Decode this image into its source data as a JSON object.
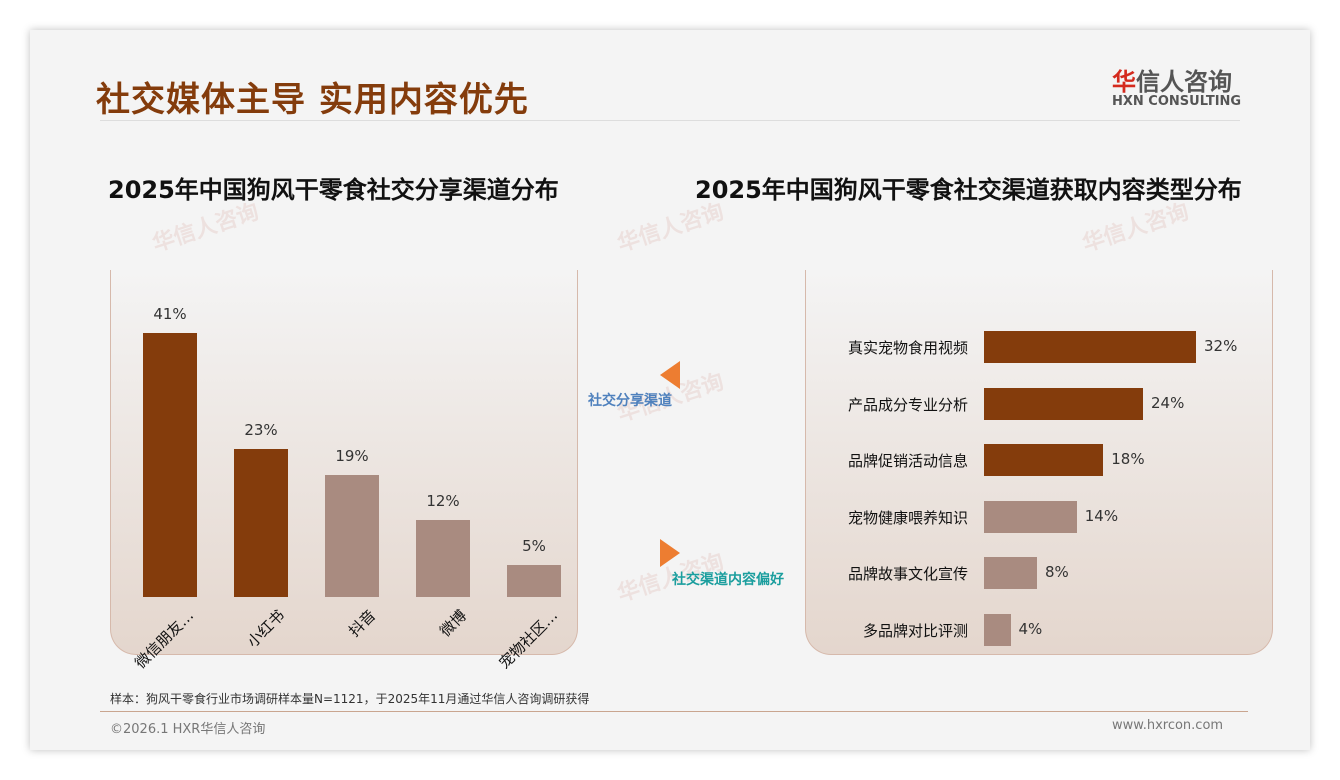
{
  "header": {
    "title": "社交媒体主导 实用内容优先",
    "logo_cn_red": "华",
    "logo_cn": "信人咨询",
    "logo_en": "HXN CONSULTING"
  },
  "watermark": {
    "cn": "华信人咨询",
    "en": "HXN CONSULTING"
  },
  "middle": {
    "left_label": "社交分享渠道",
    "right_label": "社交渠道内容偏好",
    "colors": {
      "arrow": "#ed7d31",
      "left_label": "#4f81bd",
      "right_label": "#1b9e9e"
    }
  },
  "footer": {
    "note": "样本：狗风干零食行业市场调研样本量N=1121，于2025年11月通过华信人咨询调研获得",
    "copyright": "©2026.1 HXR华信人咨询",
    "url": "www.hxrcon.com"
  },
  "chart_data": [
    {
      "type": "bar",
      "title": "2025年中国狗风干零食社交分享渠道分布",
      "categories": [
        "微信朋友…",
        "小红书",
        "抖音",
        "微博",
        "宠物社区…"
      ],
      "values": [
        41,
        23,
        19,
        12,
        5
      ],
      "labels": [
        "41%",
        "23%",
        "19%",
        "12%",
        "5%"
      ],
      "colors": [
        "#843c0c",
        "#843c0c",
        "#a98b80",
        "#a98b80",
        "#a98b80"
      ],
      "ylim": [
        0,
        41
      ]
    },
    {
      "type": "bar",
      "orientation": "horizontal",
      "title": "2025年中国狗风干零食社交渠道获取内容类型分布",
      "categories": [
        "真实宠物食用视频",
        "产品成分专业分析",
        "品牌促销活动信息",
        "宠物健康喂养知识",
        "品牌故事文化宣传",
        "多品牌对比评测"
      ],
      "values": [
        32,
        24,
        18,
        14,
        8,
        4
      ],
      "labels": [
        "32%",
        "24%",
        "18%",
        "14%",
        "8%",
        "4%"
      ],
      "colors": [
        "#843c0c",
        "#843c0c",
        "#843c0c",
        "#a98b80",
        "#a98b80",
        "#a98b80"
      ],
      "xlim": [
        0,
        32
      ]
    }
  ]
}
